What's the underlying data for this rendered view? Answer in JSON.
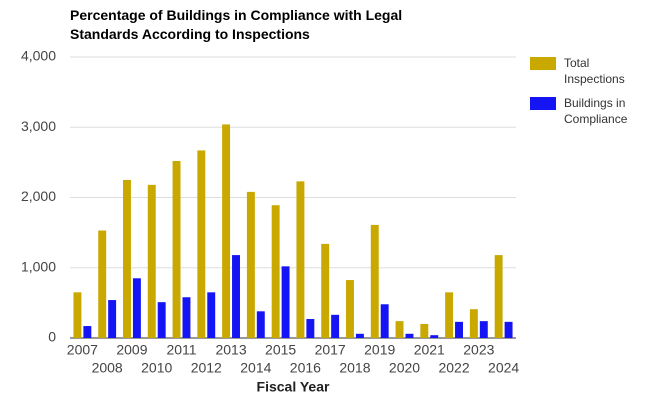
{
  "chart_data": {
    "type": "bar",
    "title": "Percentage of Buildings in Compliance with Legal Standards According to Inspections",
    "x_label": "Fiscal Year",
    "categories": [
      "2007",
      "2008",
      "2009",
      "2010",
      "2011",
      "2012",
      "2013",
      "2014",
      "2015",
      "2016",
      "2017",
      "2018",
      "2019",
      "2020",
      "2021",
      "2022",
      "2023",
      "2024"
    ],
    "series": [
      {
        "name": "Total Inspections",
        "color": "#c9a800",
        "values": [
          650,
          1530,
          2250,
          2180,
          2520,
          2670,
          3040,
          2080,
          1890,
          2230,
          1340,
          825,
          1610,
          240,
          200,
          650,
          410,
          1180
        ]
      },
      {
        "name": "Buildings in Compliance",
        "color": "#1414f5",
        "values": [
          170,
          540,
          850,
          510,
          580,
          650,
          1180,
          380,
          1020,
          270,
          330,
          60,
          480,
          60,
          40,
          230,
          240,
          230
        ]
      }
    ],
    "ylim": [
      0,
      4000
    ],
    "yticks": [
      0,
      {
        "value": 1000,
        "label": "1,000"
      },
      {
        "value": 2000,
        "label": "2,000"
      },
      {
        "value": 3000,
        "label": "3,000"
      },
      {
        "value": 4000,
        "label": "4,000"
      }
    ],
    "grid": true,
    "legend": "right"
  }
}
